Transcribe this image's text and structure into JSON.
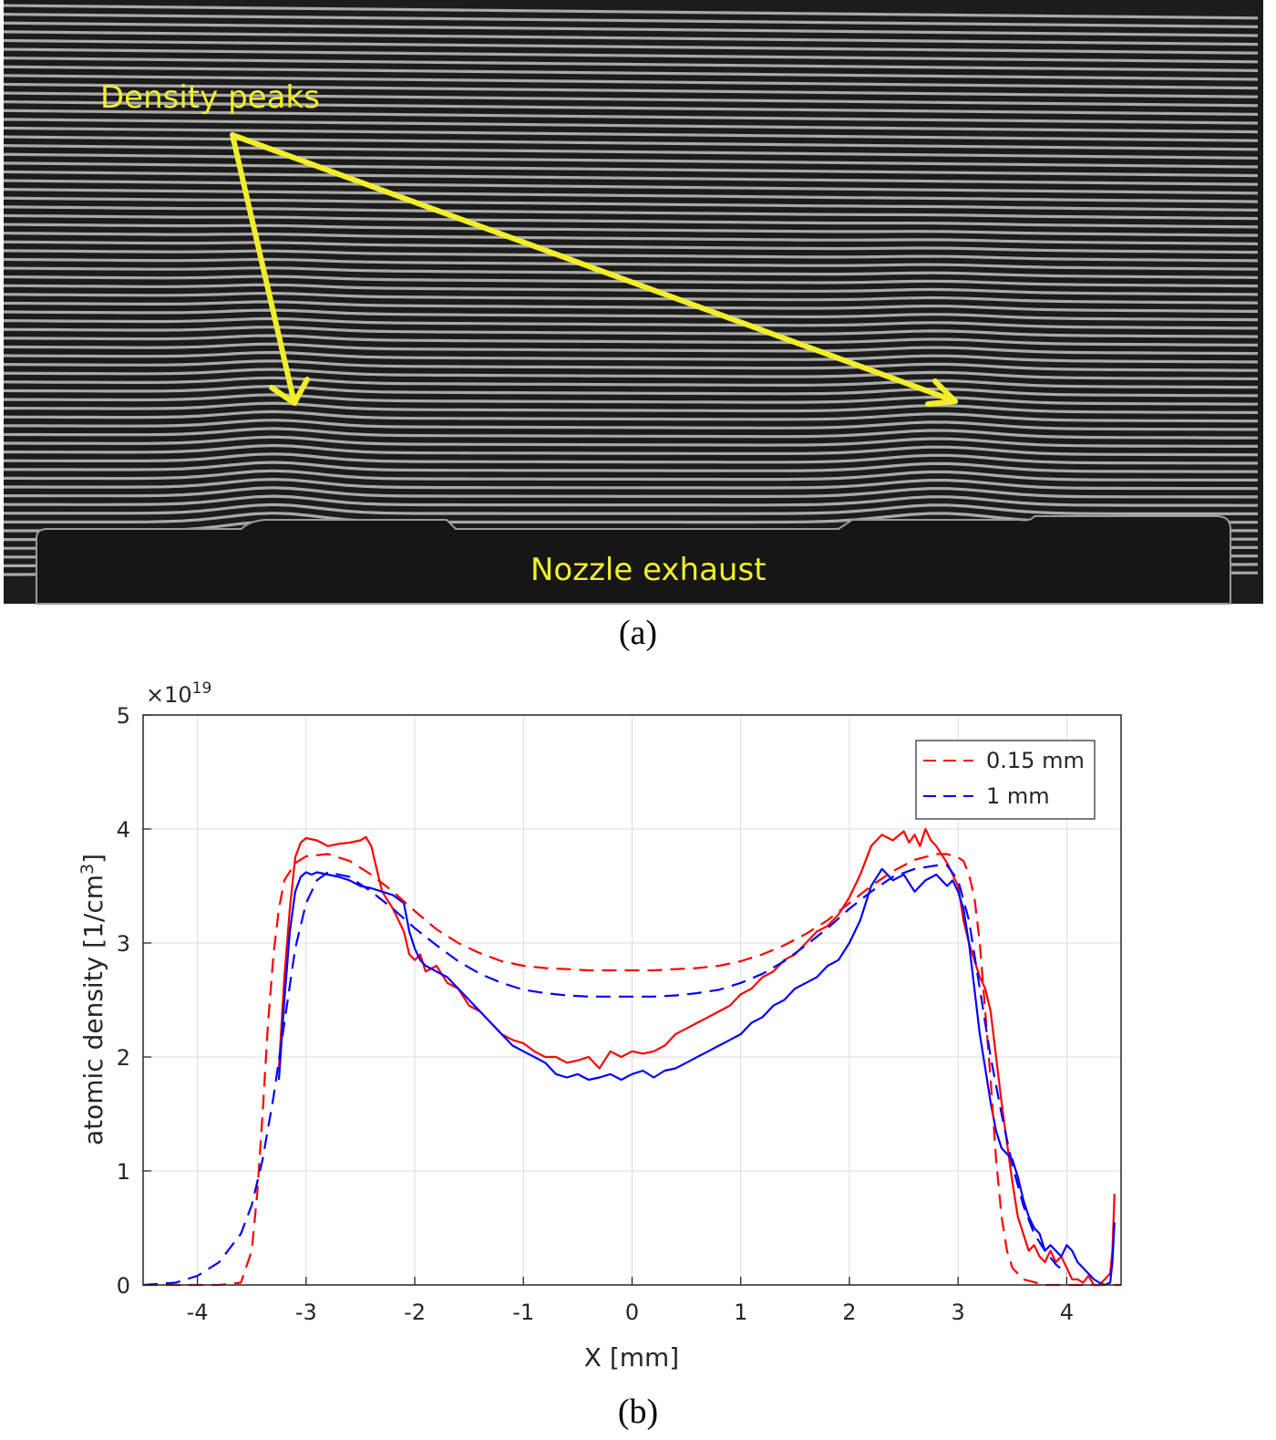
{
  "figure": {
    "panel_a": {
      "label": "(a)",
      "annotations": {
        "density_peaks": "Density peaks",
        "nozzle_exhaust": "Nozzle exhaust"
      },
      "colors": {
        "annotation": "#f2ef2a",
        "background": "#1c1c1c",
        "fringe": "#c8c8c8"
      }
    },
    "panel_b": {
      "label": "(b)"
    }
  },
  "chart_data": {
    "type": "line",
    "xlabel": "X [mm]",
    "ylabel": "atomic density [1/cm3]",
    "ylabel_parts": {
      "main": "atomic density [1/cm",
      "sup": "3",
      "tail": "]"
    },
    "y_multiplier": {
      "base": "×10",
      "exponent": "19"
    },
    "xlim": [
      -4.5,
      4.5
    ],
    "ylim": [
      0,
      5
    ],
    "xticks": [
      -4,
      -3,
      -2,
      -1,
      0,
      1,
      2,
      3,
      4
    ],
    "yticks": [
      0,
      1,
      2,
      3,
      4,
      5
    ],
    "grid": true,
    "legend_position": "top-right",
    "legend": [
      {
        "label": "0.15 mm",
        "color": "#ff0000",
        "style": "dashed"
      },
      {
        "label": "1 mm",
        "color": "#0000ff",
        "style": "dashed"
      }
    ],
    "series": [
      {
        "name": "0.15 mm",
        "color": "#ff0000",
        "style": "solid",
        "x": [
          -3.25,
          -3.2,
          -3.15,
          -3.1,
          -3.05,
          -3.0,
          -2.9,
          -2.8,
          -2.7,
          -2.6,
          -2.5,
          -2.45,
          -2.4,
          -2.35,
          -2.3,
          -2.2,
          -2.1,
          -2.05,
          -2.0,
          -1.95,
          -1.9,
          -1.8,
          -1.7,
          -1.6,
          -1.5,
          -1.4,
          -1.3,
          -1.2,
          -1.1,
          -1.0,
          -0.9,
          -0.8,
          -0.7,
          -0.6,
          -0.5,
          -0.4,
          -0.3,
          -0.2,
          -0.1,
          0.0,
          0.1,
          0.2,
          0.3,
          0.4,
          0.5,
          0.6,
          0.7,
          0.8,
          0.9,
          1.0,
          1.1,
          1.2,
          1.3,
          1.4,
          1.5,
          1.6,
          1.7,
          1.8,
          1.9,
          2.0,
          2.1,
          2.2,
          2.3,
          2.4,
          2.5,
          2.55,
          2.6,
          2.65,
          2.7,
          2.75,
          2.8,
          2.9,
          3.0,
          3.05,
          3.1,
          3.15,
          3.2,
          3.25,
          3.3,
          3.35,
          3.4,
          3.45,
          3.5,
          3.55,
          3.6,
          3.65,
          3.7,
          3.75,
          3.8,
          3.85,
          3.9,
          3.95,
          4.0,
          4.05,
          4.1,
          4.15,
          4.2,
          4.25,
          4.3,
          4.35,
          4.4,
          4.42,
          4.44
        ],
        "y": [
          1.9,
          2.7,
          3.3,
          3.75,
          3.88,
          3.92,
          3.9,
          3.85,
          3.87,
          3.88,
          3.9,
          3.93,
          3.85,
          3.65,
          3.45,
          3.3,
          3.1,
          2.9,
          2.85,
          2.9,
          2.75,
          2.8,
          2.65,
          2.6,
          2.45,
          2.4,
          2.3,
          2.2,
          2.15,
          2.12,
          2.05,
          2.0,
          2.0,
          1.95,
          1.97,
          2.0,
          1.9,
          2.05,
          2.0,
          2.05,
          2.03,
          2.05,
          2.1,
          2.2,
          2.25,
          2.3,
          2.35,
          2.4,
          2.45,
          2.55,
          2.6,
          2.7,
          2.75,
          2.85,
          2.9,
          3.0,
          3.1,
          3.15,
          3.25,
          3.4,
          3.6,
          3.85,
          3.95,
          3.9,
          3.98,
          3.88,
          3.95,
          3.85,
          4.0,
          3.9,
          3.85,
          3.7,
          3.5,
          3.2,
          3.0,
          2.85,
          2.7,
          2.6,
          2.4,
          2.0,
          1.6,
          1.25,
          0.9,
          0.6,
          0.45,
          0.3,
          0.35,
          0.25,
          0.2,
          0.3,
          0.2,
          0.25,
          0.15,
          0.05,
          0.05,
          0.02,
          0.08,
          0.0,
          0.0,
          0.05,
          0.1,
          0.3,
          0.8
        ]
      },
      {
        "name": "1 mm",
        "color": "#0000ff",
        "style": "solid",
        "x": [
          -3.25,
          -3.2,
          -3.15,
          -3.1,
          -3.05,
          -3.0,
          -2.95,
          -2.9,
          -2.8,
          -2.7,
          -2.6,
          -2.5,
          -2.4,
          -2.3,
          -2.2,
          -2.1,
          -2.05,
          -2.0,
          -1.95,
          -1.9,
          -1.8,
          -1.7,
          -1.6,
          -1.5,
          -1.4,
          -1.3,
          -1.2,
          -1.1,
          -1.0,
          -0.9,
          -0.8,
          -0.7,
          -0.6,
          -0.5,
          -0.4,
          -0.3,
          -0.2,
          -0.1,
          0.0,
          0.1,
          0.2,
          0.3,
          0.4,
          0.5,
          0.6,
          0.7,
          0.8,
          0.9,
          1.0,
          1.1,
          1.2,
          1.3,
          1.4,
          1.5,
          1.6,
          1.7,
          1.8,
          1.9,
          2.0,
          2.1,
          2.2,
          2.3,
          2.4,
          2.5,
          2.6,
          2.7,
          2.8,
          2.9,
          2.95,
          3.0,
          3.05,
          3.1,
          3.15,
          3.2,
          3.25,
          3.3,
          3.35,
          3.4,
          3.45,
          3.5,
          3.55,
          3.6,
          3.65,
          3.7,
          3.75,
          3.8,
          3.85,
          3.9,
          3.95,
          4.0,
          4.05,
          4.1,
          4.15,
          4.2,
          4.25,
          4.3,
          4.35,
          4.4,
          4.42,
          4.44
        ],
        "y": [
          1.8,
          2.5,
          3.1,
          3.45,
          3.58,
          3.62,
          3.6,
          3.62,
          3.6,
          3.58,
          3.55,
          3.5,
          3.48,
          3.45,
          3.42,
          3.35,
          3.1,
          2.95,
          2.85,
          2.8,
          2.75,
          2.7,
          2.6,
          2.5,
          2.4,
          2.3,
          2.2,
          2.1,
          2.05,
          2.0,
          1.95,
          1.85,
          1.82,
          1.85,
          1.8,
          1.82,
          1.85,
          1.8,
          1.85,
          1.88,
          1.82,
          1.88,
          1.9,
          1.95,
          2.0,
          2.05,
          2.1,
          2.15,
          2.2,
          2.3,
          2.35,
          2.45,
          2.5,
          2.6,
          2.65,
          2.7,
          2.8,
          2.85,
          3.0,
          3.2,
          3.5,
          3.65,
          3.55,
          3.6,
          3.45,
          3.55,
          3.6,
          3.5,
          3.55,
          3.45,
          3.3,
          3.0,
          2.6,
          2.2,
          1.9,
          1.6,
          1.35,
          1.2,
          1.15,
          1.1,
          0.95,
          0.75,
          0.6,
          0.5,
          0.45,
          0.3,
          0.35,
          0.3,
          0.25,
          0.35,
          0.3,
          0.2,
          0.15,
          0.1,
          0.05,
          0.02,
          0.0,
          0.02,
          0.2,
          0.55
        ]
      },
      {
        "name": "0.15 mm",
        "color": "#ff0000",
        "style": "dashed",
        "x": [
          -4.5,
          -3.8,
          -3.6,
          -3.5,
          -3.45,
          -3.4,
          -3.35,
          -3.3,
          -3.25,
          -3.2,
          -3.1,
          -3.0,
          -2.8,
          -2.6,
          -2.4,
          -2.2,
          -2.0,
          -1.8,
          -1.6,
          -1.4,
          -1.2,
          -1.0,
          -0.8,
          -0.6,
          -0.4,
          -0.2,
          0.0,
          0.2,
          0.4,
          0.6,
          0.8,
          1.0,
          1.2,
          1.4,
          1.6,
          1.8,
          2.0,
          2.2,
          2.4,
          2.6,
          2.8,
          2.9,
          3.0,
          3.05,
          3.1,
          3.15,
          3.2,
          3.25,
          3.3,
          3.35,
          3.4,
          3.45,
          3.5,
          3.6,
          3.8,
          4.5
        ],
        "y": [
          0,
          0,
          0.02,
          0.3,
          0.8,
          1.5,
          2.3,
          2.9,
          3.3,
          3.55,
          3.7,
          3.76,
          3.78,
          3.72,
          3.6,
          3.45,
          3.28,
          3.12,
          3.0,
          2.91,
          2.84,
          2.8,
          2.78,
          2.77,
          2.76,
          2.76,
          2.76,
          2.76,
          2.77,
          2.78,
          2.8,
          2.84,
          2.9,
          2.98,
          3.08,
          3.2,
          3.35,
          3.5,
          3.63,
          3.73,
          3.78,
          3.78,
          3.75,
          3.72,
          3.6,
          3.4,
          3.0,
          2.4,
          1.8,
          1.1,
          0.6,
          0.3,
          0.15,
          0.05,
          0,
          0
        ]
      },
      {
        "name": "1 mm",
        "color": "#0000ff",
        "style": "dashed",
        "x": [
          -4.5,
          -4.2,
          -4.0,
          -3.8,
          -3.6,
          -3.5,
          -3.4,
          -3.3,
          -3.2,
          -3.1,
          -3.0,
          -2.9,
          -2.8,
          -2.6,
          -2.4,
          -2.2,
          -2.0,
          -1.8,
          -1.6,
          -1.4,
          -1.2,
          -1.0,
          -0.8,
          -0.6,
          -0.4,
          -0.2,
          0.0,
          0.2,
          0.4,
          0.6,
          0.8,
          1.0,
          1.2,
          1.4,
          1.6,
          1.8,
          2.0,
          2.2,
          2.4,
          2.6,
          2.8,
          2.9,
          3.0,
          3.1,
          3.2,
          3.3,
          3.4,
          3.5,
          3.6,
          3.7,
          3.8,
          3.9,
          4.0
        ],
        "y": [
          0,
          0.02,
          0.08,
          0.2,
          0.45,
          0.7,
          1.1,
          1.65,
          2.3,
          2.95,
          3.35,
          3.55,
          3.62,
          3.58,
          3.45,
          3.3,
          3.13,
          2.98,
          2.84,
          2.73,
          2.65,
          2.59,
          2.56,
          2.54,
          2.53,
          2.53,
          2.53,
          2.53,
          2.54,
          2.56,
          2.59,
          2.65,
          2.73,
          2.84,
          2.98,
          3.13,
          3.3,
          3.45,
          3.58,
          3.65,
          3.68,
          3.68,
          3.55,
          3.2,
          2.6,
          2.0,
          1.5,
          1.05,
          0.7,
          0.45,
          0.3,
          0.18,
          0.1
        ]
      }
    ]
  }
}
